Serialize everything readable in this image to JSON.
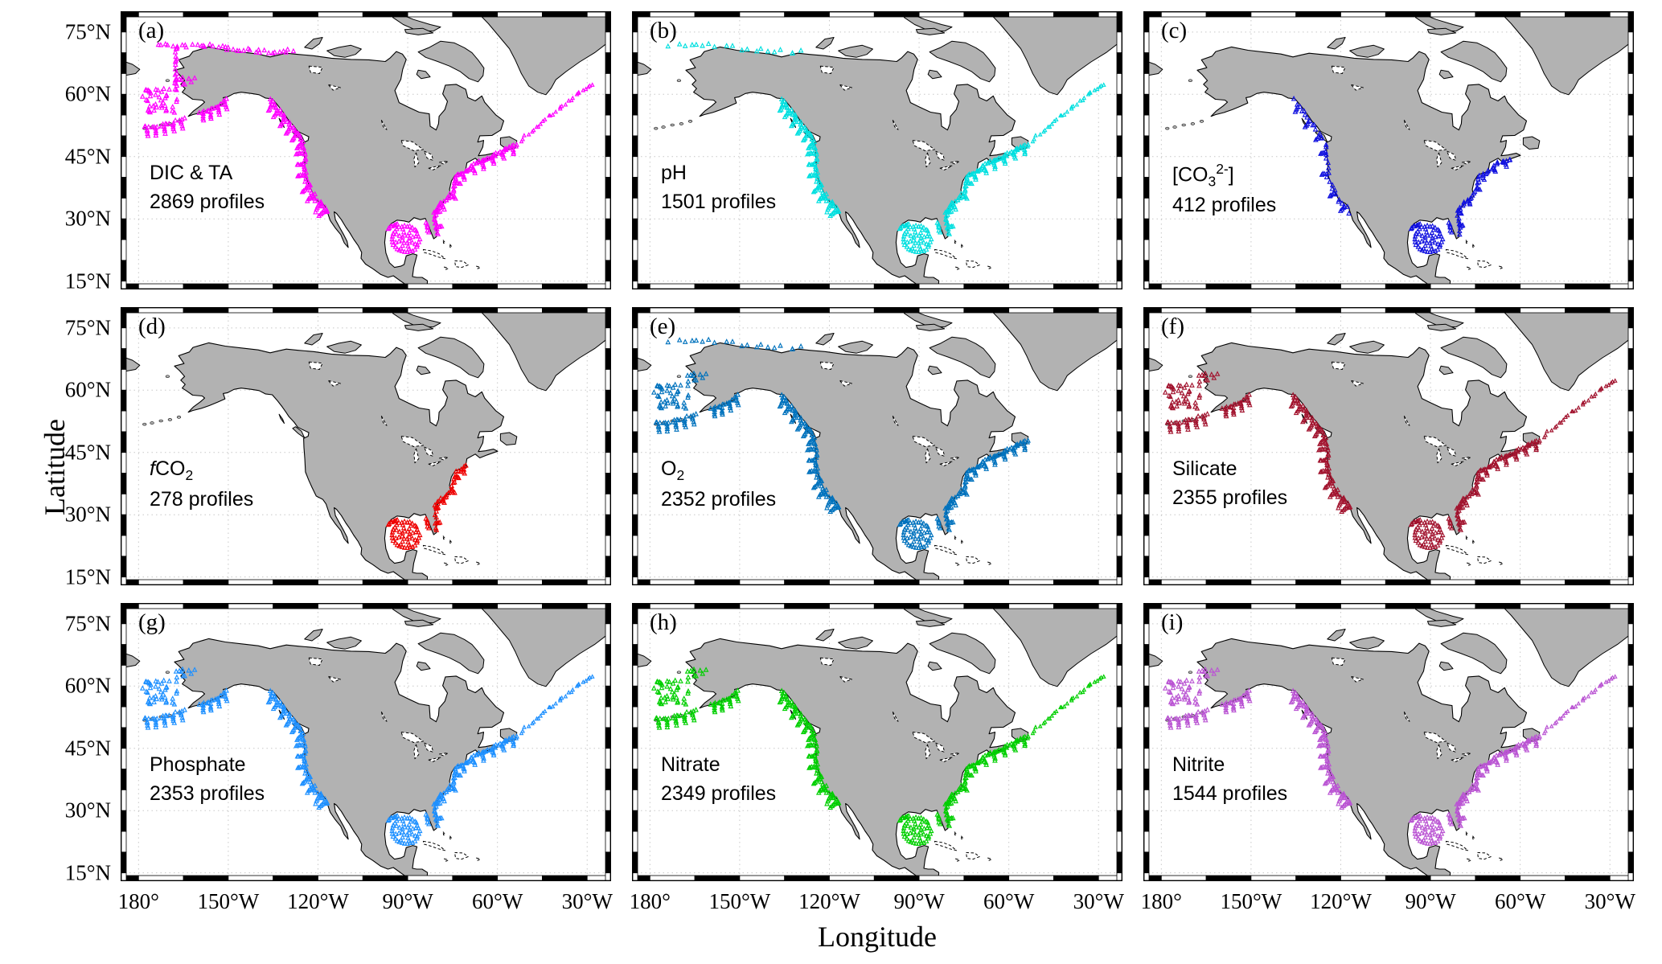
{
  "figure": {
    "xlabel": "Longitude",
    "ylabel": "Latitude",
    "x_ticks": [
      "180°",
      "150°W",
      "120°W",
      "90°W",
      "60°W",
      "30°W"
    ],
    "y_ticks": [
      "75°N",
      "60°N",
      "45°N",
      "30°N",
      "15°N"
    ],
    "land_color": "#b2b2b2",
    "ocean_color": "#ffffff",
    "grid_color": "#c8c8c8"
  },
  "panels": [
    {
      "label": "(a)",
      "param_html": "DIC &amp; TA",
      "profiles": "2869 profiles",
      "color": "#FF00FF",
      "clusters": [
        "arctic_full",
        "bering",
        "westcoast",
        "gulf",
        "eastcoast",
        "atlantic"
      ]
    },
    {
      "label": "(b)",
      "param_html": "pH",
      "profiles": "1501 profiles",
      "color": "#00DFDF",
      "clusters": [
        "arctic_sparse",
        "westcoast",
        "gulf",
        "eastcoast",
        "atlantic"
      ]
    },
    {
      "label": "(c)",
      "param_html": "[CO<sub>3</sub><sup>2-</sup>]",
      "profiles": "412 profiles",
      "color": "#1212DF",
      "clusters": [
        "westcoast_sparse",
        "gulf",
        "eastcoast_mid"
      ]
    },
    {
      "label": "(d)",
      "param_html": "<i>f</i>CO<sub>2</sub>",
      "profiles": "278 profiles",
      "color": "#EE0000",
      "clusters": [
        "gulf",
        "eastcoast_short"
      ]
    },
    {
      "label": "(e)",
      "param_html": "O<sub>2</sub>",
      "profiles": "2352 profiles",
      "color": "#0072BD",
      "clusters": [
        "arctic_sparse",
        "bering",
        "westcoast",
        "gulf",
        "eastcoast"
      ]
    },
    {
      "label": "(f)",
      "param_html": "Silicate",
      "profiles": "2355 profiles",
      "color": "#A2142F",
      "clusters": [
        "bering",
        "westcoast",
        "gulf",
        "eastcoast",
        "atlantic"
      ]
    },
    {
      "label": "(g)",
      "param_html": "Phosphate",
      "profiles": "2353 profiles",
      "color": "#1E90FF",
      "clusters": [
        "bering",
        "westcoast",
        "gulf",
        "eastcoast",
        "atlantic"
      ]
    },
    {
      "label": "(h)",
      "param_html": "Nitrate",
      "profiles": "2349 profiles",
      "color": "#00CF00",
      "clusters": [
        "bering",
        "westcoast",
        "gulf",
        "eastcoast",
        "atlantic"
      ]
    },
    {
      "label": "(i)",
      "param_html": "Nitrite",
      "profiles": "1544 profiles",
      "color": "#BA55D3",
      "clusters": [
        "bering",
        "westcoast",
        "gulf",
        "eastcoast",
        "atlantic"
      ]
    }
  ]
}
